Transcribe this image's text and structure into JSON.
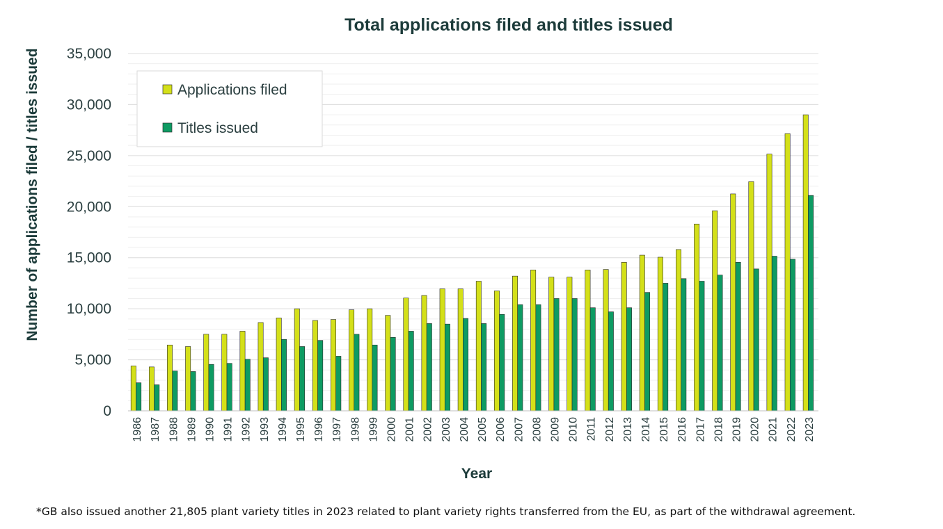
{
  "chart_data": {
    "type": "bar",
    "title": "Total applications filed and titles issued",
    "xlabel": "Year",
    "ylabel": "Number  of applications filed / titles issued",
    "ylim": [
      0,
      35000
    ],
    "yticks": [
      0,
      5000,
      10000,
      15000,
      20000,
      25000,
      30000,
      35000
    ],
    "ytick_labels": [
      "0",
      "5,000",
      "10,000",
      "15,000",
      "20,000",
      "25,000",
      "30,000",
      "35,000"
    ],
    "grid": true,
    "legend_position": "top-left",
    "categories": [
      "1986",
      "1987",
      "1988",
      "1989",
      "1990",
      "1991",
      "1992",
      "1993",
      "1994",
      "1995",
      "1996",
      "1997",
      "1998",
      "1999",
      "2000",
      "2001",
      "2002",
      "2003",
      "2004",
      "2005",
      "2006",
      "2007",
      "2008",
      "2009",
      "2010",
      "2011",
      "2012",
      "2013",
      "2014",
      "2015",
      "2016",
      "2017",
      "2018",
      "2019",
      "2020",
      "2021",
      "2022",
      "2023"
    ],
    "series": [
      {
        "name": "Applications filed",
        "color": "#d4e019",
        "values": [
          4400,
          4300,
          6450,
          6300,
          7500,
          7500,
          7800,
          8650,
          9100,
          10000,
          8850,
          8950,
          9900,
          10000,
          9350,
          11050,
          11300,
          11950,
          11950,
          12700,
          11750,
          13200,
          13800,
          13100,
          13100,
          13800,
          13850,
          14550,
          15250,
          15050,
          15800,
          18300,
          19600,
          21250,
          22450,
          25150,
          27150,
          29000
        ]
      },
      {
        "name": "Titles issued",
        "color": "#0e9b63",
        "values": [
          2750,
          2550,
          3900,
          3850,
          4550,
          4650,
          5050,
          5200,
          7000,
          6300,
          6900,
          5350,
          7500,
          6450,
          7200,
          7800,
          8550,
          8500,
          9050,
          8550,
          9450,
          10400,
          10400,
          11000,
          11000,
          10100,
          9700,
          10100,
          11600,
          12500,
          12950,
          12700,
          13300,
          14550,
          13900,
          15150,
          14850,
          21100
        ]
      }
    ]
  },
  "footnote": "*GB also issued another 21,805 plant variety titles in 2023 related to plant variety rights transferred from the EU, as part of the withdrawal agreement."
}
